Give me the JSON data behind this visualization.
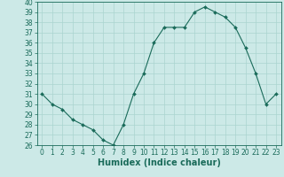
{
  "x": [
    0,
    1,
    2,
    3,
    4,
    5,
    6,
    7,
    8,
    9,
    10,
    11,
    12,
    13,
    14,
    15,
    16,
    17,
    18,
    19,
    20,
    21,
    22,
    23
  ],
  "y": [
    31,
    30,
    29.5,
    28.5,
    28,
    27.5,
    26.5,
    26,
    28,
    31,
    33,
    36,
    37.5,
    37.5,
    37.5,
    39,
    39.5,
    39,
    38.5,
    37.5,
    35.5,
    33,
    30,
    31
  ],
  "line_color": "#1a6b5a",
  "marker": "D",
  "marker_size": 2,
  "bg_color": "#cce9e7",
  "grid_color": "#aad4d0",
  "xlabel": "Humidex (Indice chaleur)",
  "ylim": [
    26,
    40
  ],
  "xlim": [
    -0.5,
    23.5
  ],
  "yticks": [
    26,
    27,
    28,
    29,
    30,
    31,
    32,
    33,
    34,
    35,
    36,
    37,
    38,
    39,
    40
  ],
  "xticks": [
    0,
    1,
    2,
    3,
    4,
    5,
    6,
    7,
    8,
    9,
    10,
    11,
    12,
    13,
    14,
    15,
    16,
    17,
    18,
    19,
    20,
    21,
    22,
    23
  ],
  "tick_label_fontsize": 5.5,
  "xlabel_fontsize": 7
}
